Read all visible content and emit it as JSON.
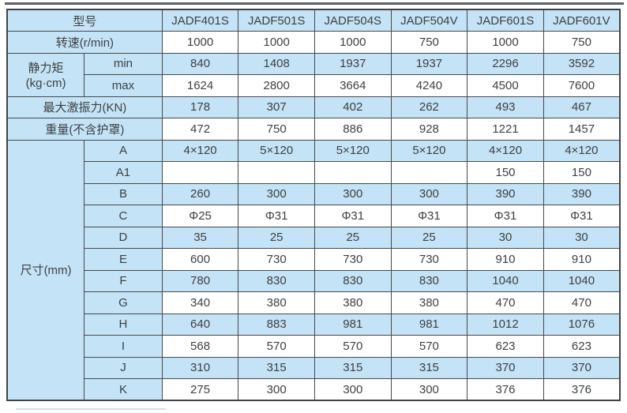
{
  "colors": {
    "cell_blue": "#c4e3f6",
    "grid_border": "#45494d",
    "outer_border": "#3f4347",
    "text": "#3d4043",
    "top_rule": "#5c6166",
    "bottom_rule": "#cfe2ee"
  },
  "chart_data": {
    "type": "table",
    "title": "",
    "columns": [
      "型号",
      "JADF401S",
      "JADF501S",
      "JADF504S",
      "JADF504V",
      "JADF601S",
      "JADF601V"
    ],
    "rows": [
      [
        "转速(r/min)",
        "1000",
        "1000",
        "1000",
        "750",
        "1000",
        "750"
      ],
      [
        "静力矩(kg·cm) min",
        "840",
        "1408",
        "1937",
        "1937",
        "2296",
        "3592"
      ],
      [
        "静力矩(kg·cm) max",
        "1624",
        "2800",
        "3664",
        "4240",
        "4500",
        "7600"
      ],
      [
        "最大激振力(KN)",
        "178",
        "307",
        "402",
        "262",
        "493",
        "467"
      ],
      [
        "重量(不含护罩)",
        "472",
        "750",
        "886",
        "928",
        "1221",
        "1457"
      ],
      [
        "尺寸(mm) A",
        "4×120",
        "5×120",
        "5×120",
        "5×120",
        "4×120",
        "4×120"
      ],
      [
        "尺寸(mm) A1",
        "",
        "",
        "",
        "",
        "150",
        "150"
      ],
      [
        "尺寸(mm) B",
        "260",
        "300",
        "300",
        "300",
        "390",
        "390"
      ],
      [
        "尺寸(mm) C",
        "Φ25",
        "Φ31",
        "Φ31",
        "Φ31",
        "Φ31",
        "Φ31"
      ],
      [
        "尺寸(mm) D",
        "35",
        "25",
        "25",
        "25",
        "30",
        "30"
      ],
      [
        "尺寸(mm) E",
        "600",
        "730",
        "730",
        "730",
        "910",
        "910"
      ],
      [
        "尺寸(mm) F",
        "780",
        "830",
        "830",
        "830",
        "1040",
        "1040"
      ],
      [
        "尺寸(mm) G",
        "340",
        "380",
        "380",
        "380",
        "470",
        "470"
      ],
      [
        "尺寸(mm) H",
        "640",
        "883",
        "981",
        "981",
        "1012",
        "1076"
      ],
      [
        "尺寸(mm) I",
        "568",
        "570",
        "570",
        "570",
        "623",
        "623"
      ],
      [
        "尺寸(mm) J",
        "310",
        "315",
        "315",
        "315",
        "370",
        "370"
      ],
      [
        "尺寸(mm) K",
        "275",
        "300",
        "300",
        "300",
        "376",
        "376"
      ]
    ]
  },
  "table": {
    "model_header": {
      "label": "型号",
      "models": [
        "JADF401S",
        "JADF501S",
        "JADF504S",
        "JADF504V",
        "JADF601S",
        "JADF601V"
      ]
    },
    "speed": {
      "label": "转速(r/min)",
      "values": [
        "1000",
        "1000",
        "1000",
        "750",
        "1000",
        "750"
      ]
    },
    "static_moment": {
      "label_line1": "静力矩",
      "label_line2": "(kg·cm)",
      "min": {
        "sub": "min",
        "values": [
          "840",
          "1408",
          "1937",
          "1937",
          "2296",
          "3592"
        ]
      },
      "max": {
        "sub": "max",
        "values": [
          "1624",
          "2800",
          "3664",
          "4240",
          "4500",
          "7600"
        ]
      }
    },
    "max_force": {
      "label": "最大激振力(KN)",
      "values": [
        "178",
        "307",
        "402",
        "262",
        "493",
        "467"
      ]
    },
    "weight": {
      "label": "重量(不含护罩)",
      "values": [
        "472",
        "750",
        "886",
        "928",
        "1221",
        "1457"
      ]
    },
    "dimensions": {
      "label": "尺寸(mm)",
      "rows": [
        {
          "sub": "A",
          "values": [
            "4×120",
            "5×120",
            "5×120",
            "5×120",
            "4×120",
            "4×120"
          ]
        },
        {
          "sub": "A1",
          "values": [
            "",
            "",
            "",
            "",
            "150",
            "150"
          ]
        },
        {
          "sub": "B",
          "values": [
            "260",
            "300",
            "300",
            "300",
            "390",
            "390"
          ]
        },
        {
          "sub": "C",
          "values": [
            "Φ25",
            "Φ31",
            "Φ31",
            "Φ31",
            "Φ31",
            "Φ31"
          ]
        },
        {
          "sub": "D",
          "values": [
            "35",
            "25",
            "25",
            "25",
            "30",
            "30"
          ]
        },
        {
          "sub": "E",
          "values": [
            "600",
            "730",
            "730",
            "730",
            "910",
            "910"
          ]
        },
        {
          "sub": "F",
          "values": [
            "780",
            "830",
            "830",
            "830",
            "1040",
            "1040"
          ]
        },
        {
          "sub": "G",
          "values": [
            "340",
            "380",
            "380",
            "380",
            "470",
            "470"
          ]
        },
        {
          "sub": "H",
          "values": [
            "640",
            "883",
            "981",
            "981",
            "1012",
            "1076"
          ]
        },
        {
          "sub": "I",
          "values": [
            "568",
            "570",
            "570",
            "570",
            "623",
            "623"
          ]
        },
        {
          "sub": "J",
          "values": [
            "310",
            "315",
            "315",
            "315",
            "370",
            "370"
          ]
        },
        {
          "sub": "K",
          "values": [
            "275",
            "300",
            "300",
            "300",
            "376",
            "376"
          ]
        }
      ]
    }
  }
}
